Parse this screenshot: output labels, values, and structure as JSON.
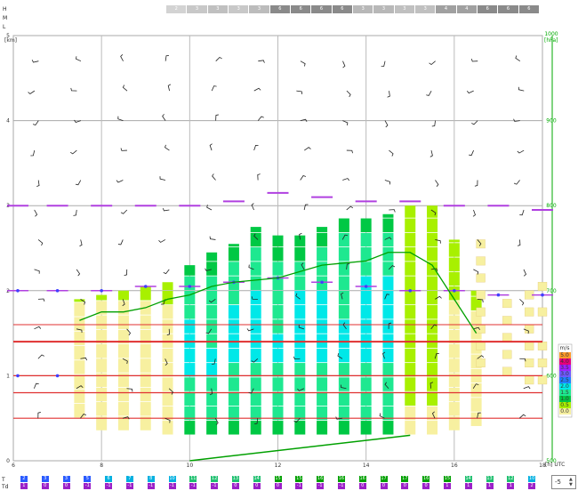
{
  "cloud_rows": [
    "H",
    "M",
    "L"
  ],
  "cloud_cover_top": [
    "2",
    "3",
    "3",
    "3",
    "3",
    "6",
    "6",
    "6",
    "6",
    "3",
    "3",
    "3",
    "3",
    "4",
    "4",
    "6",
    "6",
    "6"
  ],
  "cloud_colors": [
    "#d3d3d3",
    "#c8c8c8",
    "#c0c0c0",
    "#c8c8c8",
    "#bcbcbc",
    "#8a8a8a",
    "#8a8a8a",
    "#8a8a8a",
    "#8a8a8a",
    "#b8b8b8",
    "#b8b8b8",
    "#c0c0c0",
    "#c0c0c0",
    "#a0a0a0",
    "#a0a0a0",
    "#8a8a8a",
    "#8a8a8a",
    "#8a8a8a"
  ],
  "y_left": {
    "unit": "[km]",
    "ticks": [
      "5",
      "4",
      "3",
      "2",
      "1",
      "0"
    ]
  },
  "y_right": {
    "unit": "[hPa]",
    "ticks": [
      "1000",
      "900",
      "800",
      "700",
      "600",
      "500"
    ]
  },
  "x_axis": {
    "ticks": [
      "6",
      "8",
      "10",
      "12",
      "14",
      "16",
      "18"
    ],
    "unit": "[h] UTC"
  },
  "legend": {
    "title": "m/s",
    "labels": [
      "5.0",
      "4.0",
      "3.5",
      "3.0",
      "2.5",
      "2.0",
      "1.5",
      "1.0",
      "0.5",
      "0.0"
    ],
    "colors": [
      "#ff9a2a",
      "#e7007a",
      "#a020ff",
      "#6e59ff",
      "#2080ff",
      "#00e8e8",
      "#1ee890",
      "#00c844",
      "#a8f000",
      "#f7f0a0"
    ]
  },
  "row_T": {
    "label": "T",
    "values": [
      "2",
      "3",
      "3",
      "5",
      "6",
      "7",
      "8",
      "10",
      "11",
      "12",
      "13",
      "14",
      "15",
      "15",
      "16",
      "16",
      "16",
      "17",
      "17",
      "16",
      "15",
      "14",
      "13",
      "12",
      "10"
    ]
  },
  "row_Td": {
    "label": "Td",
    "values": [
      "1",
      "0",
      "0",
      "-1",
      "-1",
      "-1",
      "-1",
      "-1",
      "-1",
      "-1",
      "0",
      "0",
      "0",
      "-1",
      "-1",
      "-1",
      "0",
      "0",
      "0",
      "0",
      "1",
      "1",
      "1",
      "1",
      "2"
    ]
  },
  "colors": {
    "T": "#2a5bff",
    "Td": "#9b20c8",
    "bl": "#00a000",
    "inv": "#e03030",
    "freeze": "#b040e0"
  },
  "stepper": {
    "value": "-5"
  },
  "chart_data": {
    "type": "heatmap",
    "description_x": "hour UTC",
    "xlim": [
      6,
      18
    ],
    "ylim_km": [
      0,
      5
    ],
    "bl_height_km": [
      1.65,
      1.75,
      1.75,
      1.8,
      1.9,
      1.95,
      2.05,
      2.1,
      2.15,
      2.3,
      2.35,
      2.45,
      2.45,
      2.3,
      1.9,
      1.5
    ],
    "bl_hours": [
      7.5,
      8,
      8.5,
      9,
      9.5,
      10,
      10.5,
      11,
      12,
      13,
      14,
      14.5,
      15,
      15.5,
      16,
      16.5
    ],
    "column_hours": [
      7.5,
      8,
      8.5,
      9,
      9.5,
      10,
      10.5,
      11,
      11.5,
      12,
      12.5,
      13,
      13.5,
      14,
      14.5,
      15,
      15.5,
      16,
      16.5
    ],
    "column_tops_km": [
      1.9,
      1.95,
      2.0,
      2.05,
      2.1,
      2.3,
      2.45,
      2.55,
      2.75,
      2.65,
      2.65,
      2.75,
      2.85,
      2.85,
      2.9,
      3.0,
      3.0,
      2.6,
      2.0
    ],
    "column_bottoms_km": [
      0.5,
      0.35,
      0.35,
      0.35,
      0.3,
      0.3,
      0.3,
      0.3,
      0.3,
      0.3,
      0.3,
      0.3,
      0.3,
      0.3,
      0.3,
      0.3,
      0.3,
      0.35,
      0.4
    ]
  }
}
